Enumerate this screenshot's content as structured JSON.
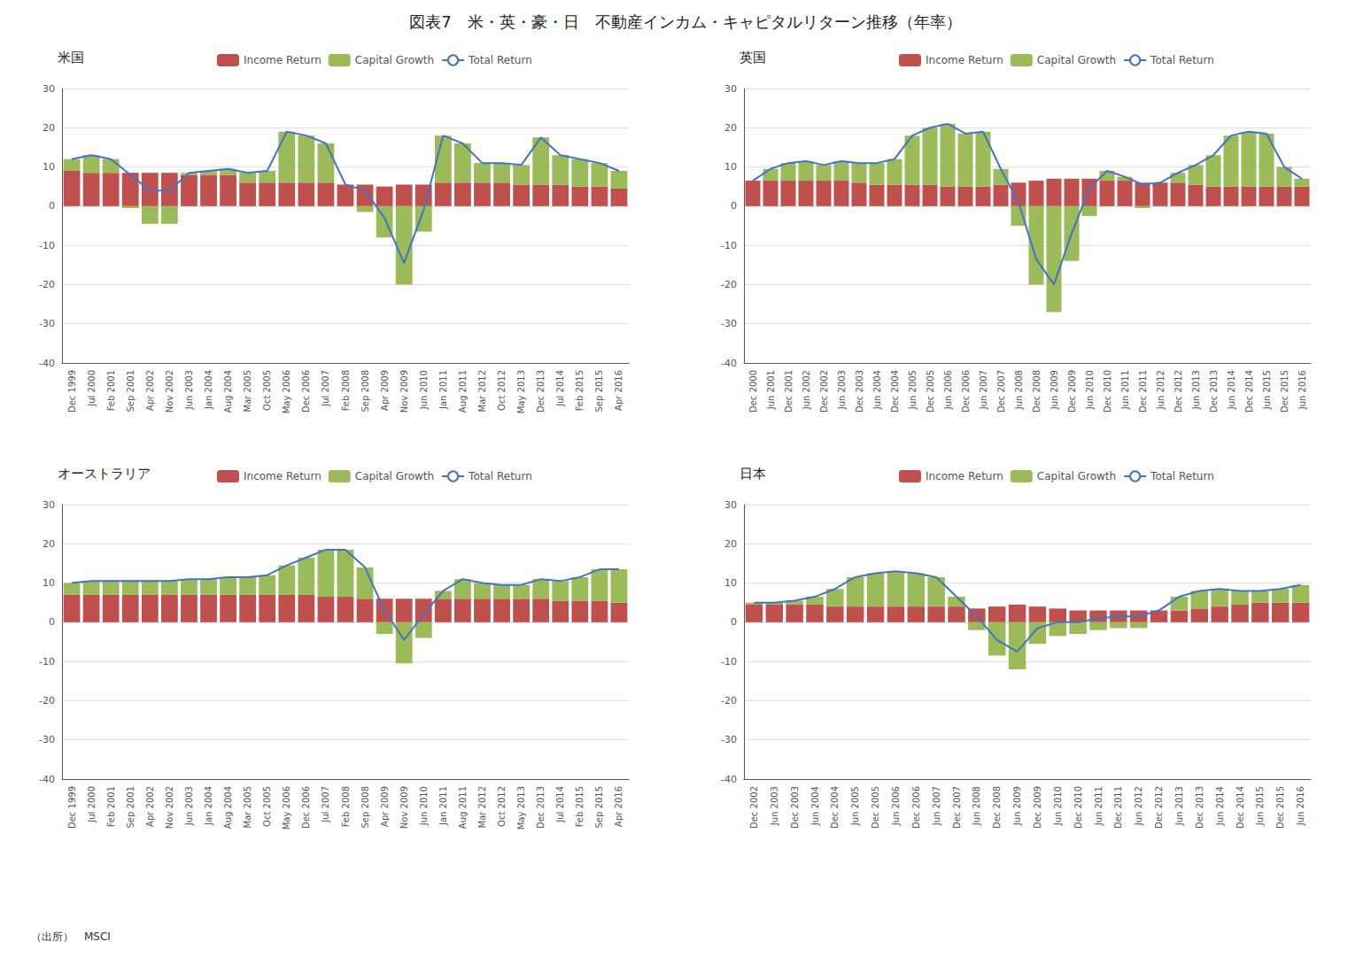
{
  "title": "図表7　米・英・豪・日　不動産インカム・キャピタルリターン推移（年率）",
  "annotations": [
    "（出所）　MSCI"
  ],
  "chart_data": [
    {
      "type": "bar",
      "title": "米国",
      "stacked": true,
      "grid": true,
      "legend": "top",
      "categories": [
        "Dec 1999",
        "Jul 2000",
        "Feb 2001",
        "Sep 2001",
        "Apr 2002",
        "Nov 2002",
        "Jun 2003",
        "Jan 2004",
        "Aug 2004",
        "Mar 2005",
        "Oct 2005",
        "May 2006",
        "Dec 2006",
        "Jul 2007",
        "Feb 2008",
        "Sep 2008",
        "Apr 2009",
        "Nov 2009",
        "Jun 2010",
        "Jan 2011",
        "Aug 2011",
        "Mar 2012",
        "Oct 2012",
        "May 2013",
        "Dec 2013",
        "Jul 2014",
        "Feb 2015",
        "Sep 2015",
        "Apr 2016"
      ],
      "series": [
        {
          "name": "Income Return",
          "color": "#C0504D",
          "values": [
            9.0,
            8.5,
            8.5,
            8.5,
            8.5,
            8.5,
            8.0,
            8.0,
            8.0,
            6.0,
            6.0,
            6.0,
            6.0,
            6.0,
            5.5,
            5.5,
            5.0,
            5.5,
            5.5,
            6.0,
            6.0,
            6.0,
            6.0,
            5.5,
            5.5,
            5.5,
            5.0,
            5.0,
            4.5
          ]
        },
        {
          "name": "Capital Growth",
          "color": "#9BBB59",
          "values": [
            3.0,
            4.5,
            3.5,
            -0.5,
            -4.5,
            -4.5,
            0.5,
            1.0,
            1.5,
            2.5,
            3.0,
            13.0,
            12.0,
            10.0,
            0.0,
            -1.5,
            -8.0,
            -20.0,
            -6.5,
            12.0,
            10.0,
            5.0,
            5.0,
            5.0,
            12.0,
            7.5,
            7.0,
            6.0,
            4.5
          ]
        },
        {
          "name": "Total Return",
          "type": "line",
          "color": "#4472C4",
          "values": [
            12.0,
            13.0,
            12.0,
            8.0,
            4.0,
            4.0,
            8.5,
            9.0,
            9.5,
            8.5,
            9.0,
            19.0,
            18.0,
            16.0,
            5.5,
            4.0,
            -3.0,
            -14.5,
            -1.0,
            18.0,
            16.0,
            11.0,
            11.0,
            10.5,
            17.5,
            13.0,
            12.0,
            11.0,
            9.0
          ]
        }
      ],
      "ylim": [
        -40,
        30
      ],
      "yticks": [
        -40,
        -30,
        -20,
        -10,
        0,
        10,
        20,
        30
      ]
    },
    {
      "type": "bar",
      "title": "英国",
      "stacked": true,
      "grid": true,
      "legend": "top",
      "categories": [
        "Dec 2000",
        "Jun 2001",
        "Dec 2001",
        "Jun 2002",
        "Dec 2002",
        "Jun 2003",
        "Dec 2003",
        "Jun 2004",
        "Dec 2004",
        "Jun 2005",
        "Dec 2005",
        "Jun 2006",
        "Dec 2006",
        "Jun 2007",
        "Dec 2007",
        "Jun 2008",
        "Dec 2008",
        "Jun 2009",
        "Dec 2009",
        "Jun 2010",
        "Dec 2010",
        "Jun 2011",
        "Dec 2011",
        "Jun 2012",
        "Dec 2012",
        "Jun 2013",
        "Dec 2013",
        "Jun 2014",
        "Dec 2014",
        "Jun 2015",
        "Dec 2015",
        "Jun 2016"
      ],
      "series": [
        {
          "name": "Income Return",
          "color": "#C0504D",
          "values": [
            6.5,
            6.5,
            6.5,
            6.5,
            6.5,
            6.5,
            6.0,
            5.5,
            5.5,
            5.5,
            5.5,
            5.0,
            5.0,
            5.0,
            5.5,
            6.0,
            6.5,
            7.0,
            7.0,
            7.0,
            6.5,
            6.5,
            6.0,
            6.0,
            6.0,
            5.5,
            5.0,
            5.0,
            5.0,
            5.0,
            5.0,
            5.0
          ]
        },
        {
          "name": "Capital Growth",
          "color": "#9BBB59",
          "values": [
            0.0,
            3.0,
            4.5,
            5.0,
            4.0,
            5.0,
            5.0,
            5.5,
            6.5,
            12.5,
            14.5,
            16.0,
            13.5,
            14.0,
            4.0,
            -5.0,
            -20.0,
            -27.0,
            -14.0,
            -2.5,
            2.5,
            1.0,
            -0.5,
            0.0,
            2.5,
            5.0,
            8.0,
            13.0,
            14.0,
            13.5,
            5.0,
            2.0
          ]
        },
        {
          "name": "Total Return",
          "type": "line",
          "color": "#4472C4",
          "values": [
            6.5,
            9.5,
            11.0,
            11.5,
            10.5,
            11.5,
            11.0,
            11.0,
            12.0,
            18.0,
            20.0,
            21.0,
            18.5,
            19.0,
            9.5,
            1.0,
            -13.5,
            -20.0,
            -7.0,
            4.5,
            9.0,
            7.5,
            5.5,
            6.0,
            8.5,
            10.5,
            13.0,
            18.0,
            19.0,
            18.5,
            10.0,
            7.0
          ]
        }
      ],
      "ylim": [
        -40,
        30
      ],
      "yticks": [
        -40,
        -30,
        -20,
        -10,
        0,
        10,
        20,
        30
      ]
    },
    {
      "type": "bar",
      "title": "オーストラリア",
      "stacked": true,
      "grid": true,
      "legend": "top",
      "categories": [
        "Dec 1999",
        "Jul 2000",
        "Feb 2001",
        "Sep 2001",
        "Apr 2002",
        "Nov 2002",
        "Jun 2003",
        "Jan 2004",
        "Aug 2004",
        "Mar 2005",
        "Oct 2005",
        "May 2006",
        "Dec 2006",
        "Jul 2007",
        "Feb 2008",
        "Sep 2008",
        "Apr 2009",
        "Nov 2009",
        "Jun 2010",
        "Jan 2011",
        "Aug 2011",
        "Mar 2012",
        "Oct 2012",
        "May 2013",
        "Dec 2013",
        "Jul 2014",
        "Feb 2015",
        "Sep 2015",
        "Apr 2016"
      ],
      "series": [
        {
          "name": "Income Return",
          "color": "#C0504D",
          "values": [
            7.0,
            7.0,
            7.0,
            7.0,
            7.0,
            7.0,
            7.0,
            7.0,
            7.0,
            7.0,
            7.0,
            7.0,
            7.0,
            6.5,
            6.5,
            6.0,
            6.0,
            6.0,
            6.0,
            6.0,
            6.0,
            6.0,
            6.0,
            6.0,
            6.0,
            5.5,
            5.5,
            5.5,
            5.0
          ]
        },
        {
          "name": "Capital Growth",
          "color": "#9BBB59",
          "values": [
            3.0,
            3.5,
            3.5,
            3.5,
            3.5,
            3.5,
            4.0,
            4.0,
            4.5,
            4.5,
            5.0,
            7.5,
            9.5,
            12.0,
            12.0,
            8.0,
            -3.0,
            -10.5,
            -4.0,
            2.0,
            5.0,
            4.0,
            3.5,
            3.5,
            5.0,
            5.0,
            6.0,
            8.0,
            8.5
          ]
        },
        {
          "name": "Total Return",
          "type": "line",
          "color": "#4472C4",
          "values": [
            10.0,
            10.5,
            10.5,
            10.5,
            10.5,
            10.5,
            11.0,
            11.0,
            11.5,
            11.5,
            12.0,
            14.5,
            16.5,
            18.5,
            18.5,
            14.0,
            3.0,
            -4.5,
            2.0,
            8.0,
            11.0,
            10.0,
            9.5,
            9.5,
            11.0,
            10.5,
            11.5,
            13.5,
            13.5
          ]
        }
      ],
      "ylim": [
        -40,
        30
      ],
      "yticks": [
        -40,
        -30,
        -20,
        -10,
        0,
        10,
        20,
        30
      ]
    },
    {
      "type": "bar",
      "title": "日本",
      "stacked": true,
      "grid": true,
      "legend": "top",
      "categories": [
        "Dec 2002",
        "Jun 2003",
        "Dec 2003",
        "Jun 2004",
        "Dec 2004",
        "Jun 2005",
        "Dec 2005",
        "Jun 2006",
        "Dec 2006",
        "Jun 2007",
        "Dec 2007",
        "Jun 2008",
        "Dec 2008",
        "Jun 2009",
        "Dec 2009",
        "Jun 2010",
        "Dec 2010",
        "Jun 2011",
        "Dec 2011",
        "Jun 2012",
        "Dec 2012",
        "Jun 2013",
        "Dec 2013",
        "Jun 2014",
        "Dec 2014",
        "Jun 2015",
        "Dec 2015",
        "Jun 2016"
      ],
      "series": [
        {
          "name": "Income Return",
          "color": "#C0504D",
          "values": [
            4.5,
            4.5,
            4.5,
            4.5,
            4.0,
            4.0,
            4.0,
            4.0,
            4.0,
            4.0,
            4.0,
            3.5,
            4.0,
            4.5,
            4.0,
            3.5,
            3.0,
            3.0,
            3.0,
            3.0,
            3.0,
            3.0,
            3.5,
            4.0,
            4.5,
            5.0,
            5.0,
            5.0
          ]
        },
        {
          "name": "Capital Growth",
          "color": "#9BBB59",
          "values": [
            0.5,
            0.5,
            1.0,
            2.0,
            4.5,
            7.5,
            8.5,
            9.0,
            8.5,
            7.5,
            2.5,
            -2.0,
            -8.5,
            -12.0,
            -5.5,
            -3.5,
            -3.0,
            -2.0,
            -1.5,
            -1.5,
            0.0,
            3.5,
            4.5,
            4.5,
            3.5,
            3.0,
            3.5,
            4.5
          ]
        },
        {
          "name": "Total Return",
          "type": "line",
          "color": "#4472C4",
          "values": [
            5.0,
            5.0,
            5.5,
            6.5,
            8.5,
            11.5,
            12.5,
            13.0,
            12.5,
            11.5,
            6.5,
            1.5,
            -4.5,
            -7.5,
            -1.5,
            0.0,
            0.0,
            1.0,
            1.5,
            1.5,
            3.0,
            6.5,
            8.0,
            8.5,
            8.0,
            8.0,
            8.5,
            9.5
          ]
        }
      ],
      "ylim": [
        -40,
        30
      ],
      "yticks": [
        -40,
        -30,
        -20,
        -10,
        0,
        10,
        20,
        30
      ]
    }
  ]
}
